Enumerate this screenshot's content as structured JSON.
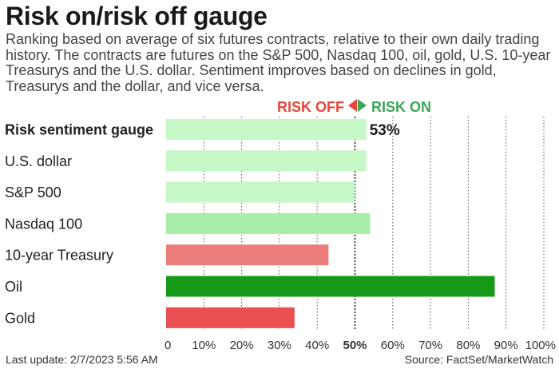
{
  "title": "Risk on/risk off gauge",
  "subtitle": "Ranking based on average of six futures contracts, relative to their own daily trading history. The contracts are futures on the S&P 500, Nasdaq 100, oil, gold, U.S. 10-year Treasurys and the U.S. dollar. Sentiment improves based on declines in gold, Treasurys and the dollar, and vice versa.",
  "legend": {
    "risk_off": "RISK OFF",
    "risk_on": "RISK ON"
  },
  "footer": {
    "last_update": "Last update: 2/7/2023 5:56 AM",
    "source": "Source: FactSet/MarketWatch"
  },
  "colors": {
    "risk_off_text": "#e8453c",
    "risk_on_text": "#3aa856",
    "light_green": "#c6f7c6",
    "medium_green": "#a8eda8",
    "dark_green": "#179a17",
    "light_red": "#ea7d7a",
    "red": "#ea4f52",
    "grid": "#555555"
  },
  "chart_data": {
    "type": "bar",
    "orientation": "horizontal",
    "categories": [
      "Risk sentiment gauge",
      "U.S. dollar",
      "S&P 500",
      "Nasdaq 100",
      "10-year Treasury",
      "Oil",
      "Gold"
    ],
    "values": [
      53,
      53,
      50,
      54,
      43,
      87,
      34
    ],
    "bar_colors": [
      "#c6f7c6",
      "#c6f7c6",
      "#c6f7c6",
      "#a8eda8",
      "#ea7d7a",
      "#179a17",
      "#ea4f52"
    ],
    "data_labels": [
      "53%",
      "",
      "",
      "",
      "",
      "",
      ""
    ],
    "xlim": [
      0,
      100
    ],
    "x_ticks": [
      "0",
      "10%",
      "20%",
      "30%",
      "40%",
      "50%",
      "60%",
      "70%",
      "80%",
      "90%",
      "100%"
    ],
    "grid": "vertical dotted",
    "reference_line": 50
  }
}
